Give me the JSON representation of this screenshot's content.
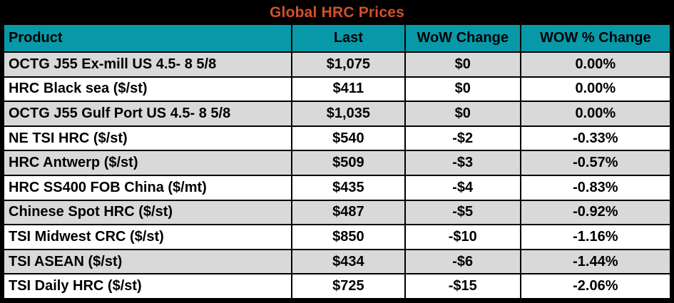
{
  "title": "Global HRC Prices",
  "colors": {
    "title_text": "#d1502b",
    "title_bg": "#000000",
    "header_bg": "#0899a8",
    "row_stripe_bg": "#d9d9d9",
    "row_bg": "#ffffff",
    "border": "#000000",
    "text": "#000000"
  },
  "table": {
    "columns": {
      "product": "Product",
      "last": "Last",
      "wow_change": "WoW Change",
      "wow_pct_change": "WOW % Change"
    },
    "rows": [
      {
        "product": "OCTG J55 Ex-mill US 4.5- 8 5/8",
        "last": "$1,075",
        "wow_change": "$0",
        "wow_pct_change": "0.00%"
      },
      {
        "product": "HRC Black sea ($/st)",
        "last": "$411",
        "wow_change": "$0",
        "wow_pct_change": "0.00%"
      },
      {
        "product": "OCTG J55 Gulf Port US 4.5- 8 5/8",
        "last": "$1,035",
        "wow_change": "$0",
        "wow_pct_change": "0.00%"
      },
      {
        "product": "NE TSI HRC ($/st)",
        "last": "$540",
        "wow_change": "-$2",
        "wow_pct_change": "-0.33%"
      },
      {
        "product": "HRC Antwerp ($/st)",
        "last": "$509",
        "wow_change": "-$3",
        "wow_pct_change": "-0.57%"
      },
      {
        "product": "HRC SS400 FOB China ($/mt)",
        "last": "$435",
        "wow_change": "-$4",
        "wow_pct_change": "-0.83%"
      },
      {
        "product": "Chinese Spot HRC ($/st)",
        "last": "$487",
        "wow_change": "-$5",
        "wow_pct_change": "-0.92%"
      },
      {
        "product": "TSI Midwest CRC ($/st)",
        "last": "$850",
        "wow_change": "-$10",
        "wow_pct_change": "-1.16%"
      },
      {
        "product": "TSI ASEAN ($/st)",
        "last": "$434",
        "wow_change": "-$6",
        "wow_pct_change": "-1.44%"
      },
      {
        "product": "TSI Daily HRC ($/st)",
        "last": "$725",
        "wow_change": "-$15",
        "wow_pct_change": "-2.06%"
      }
    ]
  },
  "chart_data": {
    "type": "table",
    "title": "Global HRC Prices",
    "columns": [
      "Product",
      "Last",
      "WoW Change",
      "WOW % Change"
    ],
    "rows": [
      [
        "OCTG J55 Ex-mill US 4.5- 8 5/8",
        1075,
        0,
        0.0
      ],
      [
        "HRC Black sea ($/st)",
        411,
        0,
        0.0
      ],
      [
        "OCTG J55 Gulf Port US 4.5- 8 5/8",
        1035,
        0,
        0.0
      ],
      [
        "NE TSI HRC ($/st)",
        540,
        -2,
        -0.33
      ],
      [
        "HRC Antwerp ($/st)",
        509,
        -3,
        -0.57
      ],
      [
        "HRC SS400 FOB China ($/mt)",
        435,
        -4,
        -0.83
      ],
      [
        "Chinese Spot HRC ($/st)",
        487,
        -5,
        -0.92
      ],
      [
        "TSI Midwest CRC ($/st)",
        850,
        -10,
        -1.16
      ],
      [
        "TSI ASEAN ($/st)",
        434,
        -6,
        -1.44
      ],
      [
        "TSI Daily HRC ($/st)",
        725,
        -15,
        -2.06
      ]
    ],
    "units": {
      "last": "USD",
      "wow_change": "USD",
      "wow_pct_change": "percent"
    },
    "layout": {
      "striped_rows": true,
      "header_style": "teal",
      "title_style": "orange-on-black"
    }
  }
}
